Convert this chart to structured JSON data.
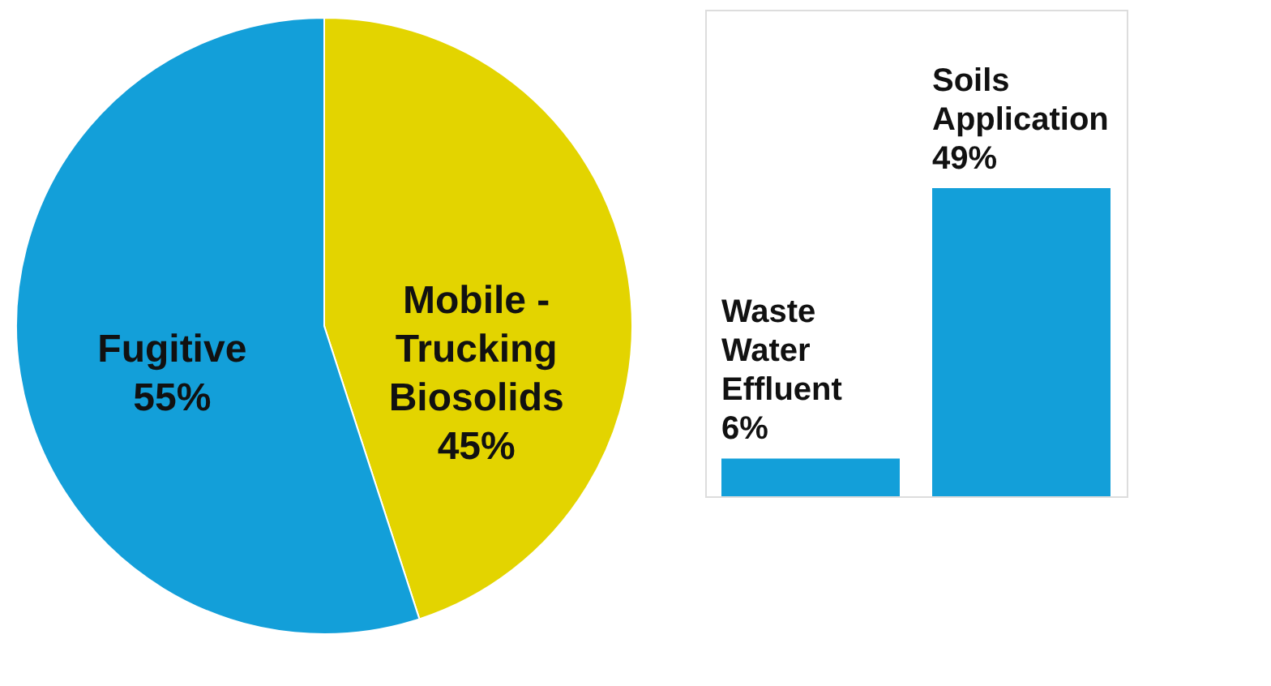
{
  "chart_data": [
    {
      "type": "pie",
      "categories": [
        "Mobile - Trucking Biosolids",
        "Fugitive"
      ],
      "values": [
        45,
        55
      ],
      "value_labels": [
        "45%",
        "55%"
      ],
      "colors": [
        "#e3d400",
        "#139fd9"
      ]
    },
    {
      "type": "bar",
      "categories": [
        "Waste Water Effluent",
        "Soils Application"
      ],
      "values": [
        6,
        49
      ],
      "value_labels": [
        "6%",
        "49%"
      ],
      "colors": [
        "#139fd9",
        "#139fd9"
      ]
    }
  ]
}
